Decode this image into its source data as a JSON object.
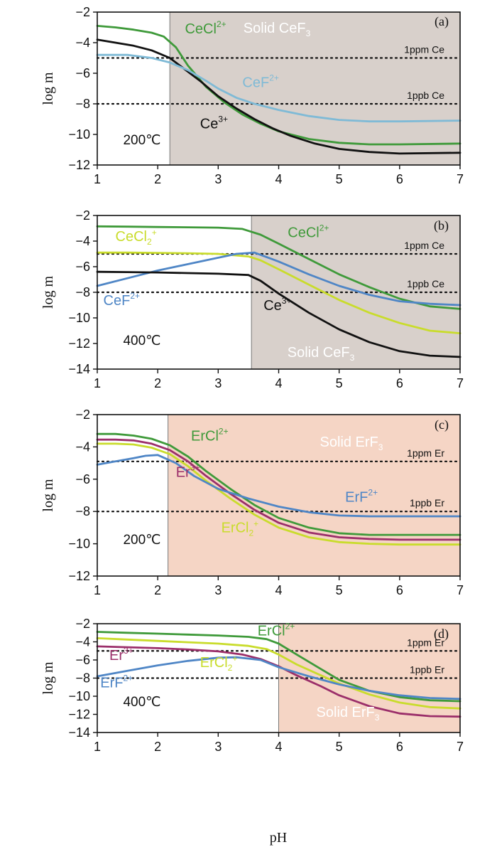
{
  "figure": {
    "x_title": "pH",
    "y_title": "log m"
  },
  "chart_data": [
    {
      "type": "line",
      "panel": "(a)",
      "xlabel": "pH",
      "ylabel": "log m",
      "xlim": [
        1,
        7
      ],
      "ylim": [
        -12,
        -2
      ],
      "x_ticks": [
        "1",
        "2",
        "3",
        "4",
        "5",
        "6",
        "7"
      ],
      "y_ticks": [
        "−12",
        "−10",
        "−8",
        "−6",
        "−4",
        "−2"
      ],
      "solid_region": {
        "x_start": 2.2,
        "label_main": "Solid CeF",
        "label_sub": "3",
        "color": "#d8d0cb"
      },
      "temperature": "200℃",
      "reference_lines": [
        {
          "y": -5,
          "label": "1ppm  Ce"
        },
        {
          "y": -8,
          "label": "1ppb  Ce"
        }
      ],
      "series": [
        {
          "name": "CeCl2+",
          "label_main": "CeCl",
          "label_sup": "2+",
          "color": "#3f9a3a",
          "x": [
            1,
            1.3,
            1.6,
            1.9,
            2.1,
            2.3,
            2.5,
            2.8,
            3.1,
            3.4,
            3.7,
            4,
            4.5,
            5,
            5.5,
            6,
            7
          ],
          "y": [
            -2.9,
            -3.0,
            -3.15,
            -3.35,
            -3.6,
            -4.3,
            -5.5,
            -6.9,
            -7.9,
            -8.7,
            -9.3,
            -9.8,
            -10.3,
            -10.55,
            -10.65,
            -10.65,
            -10.6
          ]
        },
        {
          "name": "Ce3+",
          "label_main": "Ce",
          "label_sup": "3+",
          "color": "#111111",
          "x": [
            1,
            1.3,
            1.6,
            1.9,
            2.2,
            2.4,
            2.7,
            3,
            3.3,
            3.6,
            3.9,
            4.2,
            4.6,
            5,
            5.5,
            6,
            7
          ],
          "y": [
            -3.8,
            -4.0,
            -4.2,
            -4.5,
            -5.0,
            -5.6,
            -6.5,
            -7.5,
            -8.3,
            -9.0,
            -9.6,
            -10.1,
            -10.6,
            -10.95,
            -11.15,
            -11.25,
            -11.2
          ]
        },
        {
          "name": "CeF2+",
          "label_main": "CeF",
          "label_sup": "2+",
          "color": "#7fbad6",
          "x": [
            1,
            1.5,
            1.9,
            2.2,
            2.5,
            2.8,
            3,
            3.3,
            3.6,
            4,
            4.5,
            5,
            5.5,
            6,
            7
          ],
          "y": [
            -4.8,
            -4.8,
            -5.0,
            -5.3,
            -5.8,
            -6.5,
            -7.0,
            -7.6,
            -8.0,
            -8.4,
            -8.8,
            -9.05,
            -9.15,
            -9.15,
            -9.1
          ]
        }
      ],
      "annotations": [
        {
          "series": "CeCl2+",
          "x": 2.45,
          "y": -3.4
        },
        {
          "series": "CeF2+",
          "x": 3.4,
          "y": -6.9
        },
        {
          "series": "Ce3+",
          "x": 2.7,
          "y": -9.6
        }
      ]
    },
    {
      "type": "line",
      "panel": "(b)",
      "xlabel": "pH",
      "ylabel": "log m",
      "xlim": [
        1,
        7
      ],
      "ylim": [
        -14,
        -2
      ],
      "x_ticks": [
        "1",
        "2",
        "3",
        "4",
        "5",
        "6",
        "7"
      ],
      "y_ticks": [
        "−14",
        "−12",
        "−10",
        "−8",
        "−6",
        "−4",
        "−2"
      ],
      "solid_region": {
        "x_start": 3.55,
        "label_main": "Solid CeF",
        "label_sub": "3",
        "color": "#d8d0cb"
      },
      "temperature": "400℃",
      "reference_lines": [
        {
          "y": -5,
          "label": "1ppm  Ce"
        },
        {
          "y": -8,
          "label": "1ppb  Ce"
        }
      ],
      "series": [
        {
          "name": "CeCl2+",
          "label_main": "CeCl",
          "label_sup": "2+",
          "color": "#3f9a3a",
          "x": [
            1,
            1.5,
            2,
            2.5,
            3,
            3.4,
            3.7,
            4,
            4.5,
            5,
            5.5,
            6,
            6.5,
            7
          ],
          "y": [
            -2.85,
            -2.87,
            -2.9,
            -2.92,
            -2.95,
            -3.05,
            -3.5,
            -4.2,
            -5.4,
            -6.6,
            -7.6,
            -8.5,
            -9.1,
            -9.3
          ]
        },
        {
          "name": "CeCl2+_b",
          "label_main": "CeCl",
          "label_sub": "2",
          "label_sup": "+",
          "color": "#c9dc2c",
          "x": [
            1,
            1.5,
            2,
            2.5,
            3,
            3.5,
            3.7,
            4,
            4.5,
            5,
            5.5,
            6,
            6.5,
            7
          ],
          "y": [
            -4.9,
            -4.9,
            -4.92,
            -4.95,
            -5.0,
            -5.2,
            -5.5,
            -6.2,
            -7.4,
            -8.6,
            -9.6,
            -10.4,
            -11.0,
            -11.2
          ]
        },
        {
          "name": "CeF2+",
          "label_main": "CeF",
          "label_sup": "2+",
          "color": "#4f86c6",
          "x": [
            1,
            1.5,
            2,
            2.5,
            3,
            3.3,
            3.6,
            4,
            4.5,
            5,
            5.5,
            6,
            6.5,
            7
          ],
          "y": [
            -7.5,
            -6.9,
            -6.3,
            -5.8,
            -5.3,
            -5.0,
            -4.9,
            -5.6,
            -6.6,
            -7.5,
            -8.2,
            -8.7,
            -8.9,
            -9.0
          ]
        },
        {
          "name": "Ce3+",
          "label_main": "Ce",
          "label_sup": "3+",
          "color": "#111111",
          "x": [
            1,
            1.5,
            2,
            2.5,
            3,
            3.5,
            3.7,
            4,
            4.5,
            5,
            5.5,
            6,
            6.5,
            7
          ],
          "y": [
            -6.4,
            -6.42,
            -6.45,
            -6.5,
            -6.55,
            -6.65,
            -7.1,
            -8.1,
            -9.6,
            -10.9,
            -11.9,
            -12.6,
            -12.95,
            -13.05
          ]
        }
      ],
      "annotations": [
        {
          "series": "CeCl2+",
          "x": 4.15,
          "y": -3.7
        },
        {
          "series": "CeCl2+_b",
          "x": 1.3,
          "y": -4.0
        },
        {
          "series": "CeF2+",
          "x": 1.1,
          "y": -9.0
        },
        {
          "series": "Ce3+",
          "x": 3.75,
          "y": -9.4
        }
      ]
    },
    {
      "type": "line",
      "panel": "(c)",
      "xlabel": "pH",
      "ylabel": "log m",
      "xlim": [
        1,
        7
      ],
      "ylim": [
        -12,
        -2
      ],
      "x_ticks": [
        "1",
        "2",
        "3",
        "4",
        "5",
        "6",
        "7"
      ],
      "y_ticks": [
        "−12",
        "−10",
        "−8",
        "−6",
        "−4",
        "−2"
      ],
      "solid_region": {
        "x_start": 2.17,
        "label_main": "Solid  ErF",
        "label_sub": "3",
        "color": "#f5d5c5"
      },
      "temperature": "200℃",
      "reference_lines": [
        {
          "y": -4.9,
          "label": "1ppm  Er"
        },
        {
          "y": -8,
          "label": "1ppb  Er"
        }
      ],
      "series": [
        {
          "name": "ErCl2+",
          "label_main": "ErCl",
          "label_sup": "2+",
          "color": "#3f9a3a",
          "x": [
            1,
            1.3,
            1.6,
            1.9,
            2.2,
            2.5,
            2.8,
            3.2,
            3.6,
            4,
            4.5,
            5,
            5.5,
            6,
            7
          ],
          "y": [
            -3.2,
            -3.2,
            -3.3,
            -3.5,
            -3.9,
            -4.6,
            -5.5,
            -6.6,
            -7.6,
            -8.4,
            -9.0,
            -9.35,
            -9.45,
            -9.45,
            -9.45
          ]
        },
        {
          "name": "Er3+",
          "label_main": "Er",
          "label_sup": "3+",
          "color": "#9b2f6a",
          "x": [
            1,
            1.3,
            1.6,
            1.9,
            2.2,
            2.5,
            2.8,
            3.2,
            3.6,
            4,
            4.5,
            5,
            5.5,
            6,
            7
          ],
          "y": [
            -3.55,
            -3.55,
            -3.6,
            -3.8,
            -4.2,
            -4.9,
            -5.8,
            -6.9,
            -7.9,
            -8.7,
            -9.3,
            -9.6,
            -9.7,
            -9.75,
            -9.75
          ]
        },
        {
          "name": "ErCl2+_b",
          "label_main": "ErCl",
          "label_sub": "2",
          "label_sup": "+",
          "color": "#c9dc2c",
          "x": [
            1,
            1.3,
            1.6,
            1.9,
            2.2,
            2.5,
            2.8,
            3.2,
            3.6,
            4,
            4.5,
            5,
            5.5,
            6,
            7
          ],
          "y": [
            -3.8,
            -3.8,
            -3.85,
            -4.05,
            -4.45,
            -5.2,
            -6.1,
            -7.2,
            -8.2,
            -9.0,
            -9.6,
            -9.9,
            -10.0,
            -10.05,
            -10.05
          ]
        },
        {
          "name": "ErF2+",
          "label_main": "ErF",
          "label_sup": "2+",
          "color": "#4f86c6",
          "x": [
            1,
            1.3,
            1.6,
            1.8,
            2,
            2.3,
            2.6,
            3,
            3.5,
            4,
            4.5,
            5,
            5.5,
            6,
            7
          ],
          "y": [
            -5.1,
            -4.9,
            -4.7,
            -4.55,
            -4.5,
            -5.0,
            -5.8,
            -6.6,
            -7.2,
            -7.7,
            -8.05,
            -8.25,
            -8.3,
            -8.3,
            -8.3
          ]
        }
      ],
      "annotations": [
        {
          "series": "ErCl2+",
          "x": 2.55,
          "y": -3.6
        },
        {
          "series": "Er3+",
          "x": 2.3,
          "y": -5.85
        },
        {
          "series": "ErCl2+_b",
          "x": 3.05,
          "y": -9.3
        },
        {
          "series": "ErF2+",
          "x": 5.1,
          "y": -7.4
        }
      ]
    },
    {
      "type": "line",
      "panel": "(d)",
      "xlabel": "pH",
      "ylabel": "log m",
      "xlim": [
        1,
        7
      ],
      "ylim": [
        -14,
        -2
      ],
      "x_ticks": [
        "1",
        "2",
        "3",
        "4",
        "5",
        "6",
        "7"
      ],
      "y_ticks": [
        "−14",
        "−12",
        "−10",
        "−8",
        "−6",
        "−4",
        "−2"
      ],
      "solid_region": {
        "x_start": 4.0,
        "label_main": "Solid  ErF",
        "label_sub": "3",
        "color": "#f5d5c5"
      },
      "temperature": "400℃",
      "reference_lines": [
        {
          "y": -5,
          "label": "1ppm  Er"
        },
        {
          "y": -8,
          "label": "1ppb  Er"
        }
      ],
      "series": [
        {
          "name": "ErCl2+",
          "label_main": "ErCl",
          "label_sup": "2+",
          "color": "#3f9a3a",
          "x": [
            1,
            1.5,
            2,
            2.5,
            3,
            3.5,
            3.8,
            4,
            4.3,
            4.7,
            5,
            5.5,
            6,
            6.5,
            7
          ],
          "y": [
            -2.9,
            -3.0,
            -3.1,
            -3.2,
            -3.3,
            -3.45,
            -3.7,
            -4.2,
            -5.4,
            -7.0,
            -8.2,
            -9.4,
            -10.1,
            -10.45,
            -10.55
          ]
        },
        {
          "name": "ErCl2+_b",
          "label_main": "ErCl",
          "label_sub": "2",
          "label_sup": "+",
          "color": "#c9dc2c",
          "x": [
            1,
            1.5,
            2,
            2.5,
            3,
            3.5,
            3.8,
            4,
            4.3,
            4.7,
            5,
            5.5,
            6,
            6.5,
            7
          ],
          "y": [
            -3.6,
            -3.75,
            -3.9,
            -4.05,
            -4.2,
            -4.45,
            -4.8,
            -5.4,
            -6.5,
            -7.7,
            -8.6,
            -9.8,
            -10.7,
            -11.2,
            -11.35
          ]
        },
        {
          "name": "Er3+",
          "label_main": "Er",
          "label_sup": "3+",
          "color": "#9b2f6a",
          "x": [
            1,
            1.5,
            2,
            2.5,
            3,
            3.4,
            3.7,
            4,
            4.3,
            4.7,
            5,
            5.5,
            6,
            6.5,
            7
          ],
          "y": [
            -4.5,
            -4.6,
            -4.7,
            -4.85,
            -5.05,
            -5.4,
            -5.9,
            -6.7,
            -7.7,
            -8.9,
            -9.9,
            -11.1,
            -11.9,
            -12.2,
            -12.25
          ]
        },
        {
          "name": "ErF2+",
          "label_main": "ErF",
          "label_sup": "2+",
          "color": "#4f86c6",
          "x": [
            1,
            1.5,
            2,
            2.5,
            3,
            3.3,
            3.7,
            4,
            4.5,
            5,
            5.5,
            6,
            6.5,
            7
          ],
          "y": [
            -7.8,
            -7.2,
            -6.6,
            -6.1,
            -5.75,
            -5.7,
            -6.0,
            -6.8,
            -7.8,
            -8.7,
            -9.4,
            -9.9,
            -10.2,
            -10.3
          ]
        }
      ],
      "annotations": [
        {
          "series": "ErCl2+",
          "x": 3.65,
          "y": -3.3
        },
        {
          "series": "Er3+",
          "x": 1.2,
          "y": -6.0
        },
        {
          "series": "ErCl2+_b",
          "x": 2.7,
          "y": -6.8
        },
        {
          "series": "ErF2+",
          "x": 1.05,
          "y": -9.0
        }
      ]
    }
  ]
}
